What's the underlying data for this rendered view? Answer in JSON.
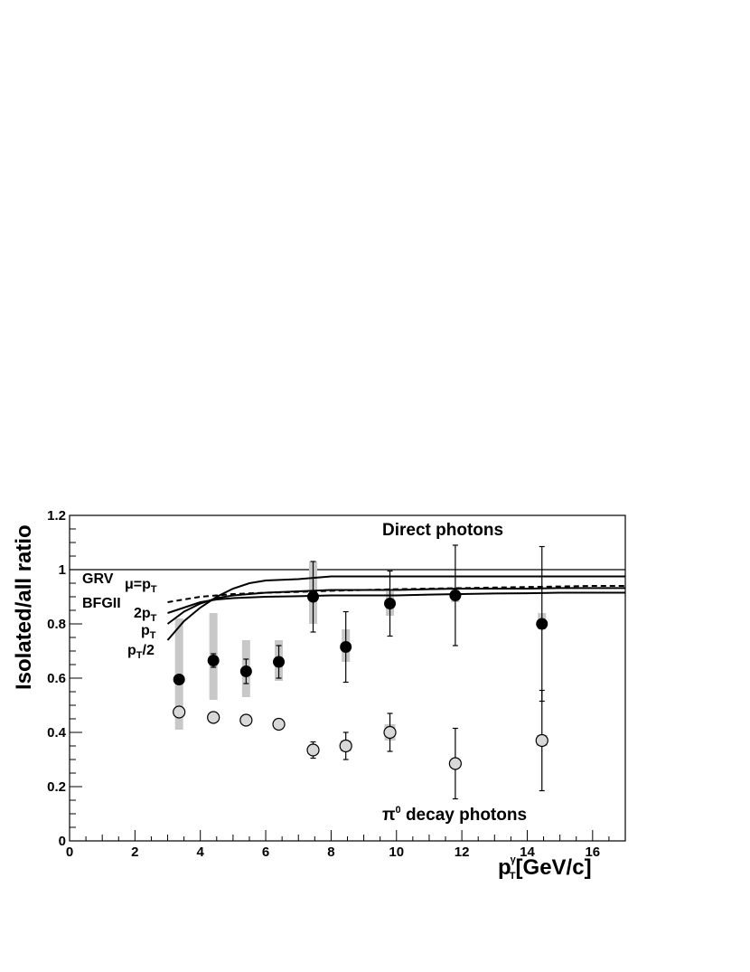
{
  "chart_data": {
    "type": "scatter",
    "ylabel": "Isolated/all ratio",
    "xlabel": {
      "main": "p",
      "sup": "γ",
      "sub": "T",
      "rest": "[GeV/c]"
    },
    "xlim": [
      0,
      17
    ],
    "ylim": [
      0,
      1.2
    ],
    "x_ticks": [
      0,
      2,
      4,
      6,
      8,
      10,
      12,
      14,
      16
    ],
    "y_ticks": [
      0,
      0.2,
      0.4,
      0.6,
      0.8,
      1,
      1.2
    ],
    "x_tick_labels": [
      "0",
      "2",
      "4",
      "6",
      "8",
      "10",
      "12",
      "14",
      "16"
    ],
    "y_tick_labels": [
      "0",
      "0.2",
      "0.4",
      "0.6",
      "0.8",
      "1",
      "1.2"
    ],
    "grid": false,
    "reference_line_y": 1,
    "series": [
      {
        "name": "Direct photons",
        "marker": "filled-circle",
        "points": [
          {
            "x": 3.35,
            "y": 0.595,
            "err_lo": 0.0,
            "err_hi": 0.0,
            "sys_lo": 0.41,
            "sys_hi": 0.82
          },
          {
            "x": 4.4,
            "y": 0.665,
            "err_lo": 0.025,
            "err_hi": 0.025,
            "sys_lo": 0.52,
            "sys_hi": 0.84
          },
          {
            "x": 5.4,
            "y": 0.625,
            "err_lo": 0.045,
            "err_hi": 0.045,
            "sys_lo": 0.53,
            "sys_hi": 0.74
          },
          {
            "x": 6.4,
            "y": 0.66,
            "err_lo": 0.06,
            "err_hi": 0.06,
            "sys_lo": 0.59,
            "sys_hi": 0.74
          },
          {
            "x": 7.45,
            "y": 0.9,
            "err_lo": 0.13,
            "err_hi": 0.13,
            "sys_lo": 0.8,
            "sys_hi": 1.03
          },
          {
            "x": 8.45,
            "y": 0.715,
            "err_lo": 0.13,
            "err_hi": 0.13,
            "sys_lo": 0.66,
            "sys_hi": 0.78
          },
          {
            "x": 9.8,
            "y": 0.875,
            "err_lo": 0.12,
            "err_hi": 0.12,
            "sys_lo": 0.83,
            "sys_hi": 0.92
          },
          {
            "x": 11.8,
            "y": 0.905,
            "err_lo": 0.185,
            "err_hi": 0.185,
            "sys_lo": 0.88,
            "sys_hi": 0.93
          },
          {
            "x": 14.45,
            "y": 0.8,
            "err_lo": 0.285,
            "err_hi": 0.285,
            "sys_lo": 0.78,
            "sys_hi": 0.84
          }
        ]
      },
      {
        "name": "π⁰ decay photons",
        "marker": "open-circle",
        "points": [
          {
            "x": 3.35,
            "y": 0.475,
            "err_lo": 0.0,
            "err_hi": 0.0,
            "sys_lo": 0.46,
            "sys_hi": 0.49
          },
          {
            "x": 4.4,
            "y": 0.455,
            "err_lo": 0.0,
            "err_hi": 0.0,
            "sys_lo": 0.44,
            "sys_hi": 0.47
          },
          {
            "x": 5.4,
            "y": 0.445,
            "err_lo": 0.0,
            "err_hi": 0.0,
            "sys_lo": 0.43,
            "sys_hi": 0.46
          },
          {
            "x": 6.4,
            "y": 0.43,
            "err_lo": 0.0,
            "err_hi": 0.0,
            "sys_lo": 0.42,
            "sys_hi": 0.44
          },
          {
            "x": 7.45,
            "y": 0.335,
            "err_lo": 0.03,
            "err_hi": 0.03,
            "sys_lo": 0.32,
            "sys_hi": 0.35
          },
          {
            "x": 8.45,
            "y": 0.35,
            "err_lo": 0.05,
            "err_hi": 0.05,
            "sys_lo": 0.33,
            "sys_hi": 0.37
          },
          {
            "x": 9.8,
            "y": 0.4,
            "err_lo": 0.07,
            "err_hi": 0.07,
            "sys_lo": 0.37,
            "sys_hi": 0.43
          },
          {
            "x": 11.8,
            "y": 0.285,
            "err_lo": 0.13,
            "err_hi": 0.13,
            "sys_lo": 0.27,
            "sys_hi": 0.3
          },
          {
            "x": 14.45,
            "y": 0.37,
            "err_lo": 0.185,
            "err_hi": 0.185,
            "sys_lo": 0.35,
            "sys_hi": 0.39
          }
        ]
      }
    ],
    "curves": [
      {
        "name": "GRV μ=2pT",
        "style": "solid",
        "points": [
          [
            3.0,
            0.84
          ],
          [
            3.5,
            0.86
          ],
          [
            4,
            0.88
          ],
          [
            4.5,
            0.89
          ],
          [
            5,
            0.895
          ],
          [
            6,
            0.9
          ],
          [
            7,
            0.902
          ],
          [
            8,
            0.905
          ],
          [
            9,
            0.905
          ],
          [
            10,
            0.905
          ],
          [
            11,
            0.908
          ],
          [
            12,
            0.91
          ],
          [
            13,
            0.912
          ],
          [
            14,
            0.913
          ],
          [
            15,
            0.915
          ],
          [
            16,
            0.915
          ],
          [
            17,
            0.915
          ]
        ]
      },
      {
        "name": "GRV μ=pT",
        "style": "solid",
        "points": [
          [
            3.0,
            0.8
          ],
          [
            3.5,
            0.845
          ],
          [
            4,
            0.875
          ],
          [
            4.5,
            0.895
          ],
          [
            5,
            0.905
          ],
          [
            6,
            0.915
          ],
          [
            7,
            0.92
          ],
          [
            8,
            0.925
          ],
          [
            9,
            0.925
          ],
          [
            10,
            0.925
          ],
          [
            11,
            0.928
          ],
          [
            12,
            0.93
          ],
          [
            13,
            0.93
          ],
          [
            14,
            0.93
          ],
          [
            15,
            0.932
          ],
          [
            16,
            0.932
          ],
          [
            17,
            0.932
          ]
        ]
      },
      {
        "name": "GRV μ=pT/2",
        "style": "solid",
        "points": [
          [
            3.0,
            0.74
          ],
          [
            3.5,
            0.81
          ],
          [
            4,
            0.86
          ],
          [
            4.5,
            0.9
          ],
          [
            5,
            0.93
          ],
          [
            5.5,
            0.95
          ],
          [
            6,
            0.96
          ],
          [
            7,
            0.965
          ],
          [
            7.5,
            0.97
          ],
          [
            8,
            0.975
          ],
          [
            9,
            0.975
          ],
          [
            10,
            0.975
          ],
          [
            11,
            0.975
          ],
          [
            12,
            0.975
          ],
          [
            13,
            0.975
          ],
          [
            14,
            0.975
          ],
          [
            15,
            0.975
          ],
          [
            16,
            0.975
          ],
          [
            17,
            0.975
          ]
        ]
      },
      {
        "name": "BFGII",
        "style": "dashed",
        "points": [
          [
            3.0,
            0.88
          ],
          [
            3.5,
            0.89
          ],
          [
            4,
            0.9
          ],
          [
            4.5,
            0.905
          ],
          [
            5,
            0.91
          ],
          [
            6,
            0.915
          ],
          [
            7,
            0.918
          ],
          [
            8,
            0.922
          ],
          [
            9,
            0.925
          ],
          [
            10,
            0.928
          ],
          [
            11,
            0.93
          ],
          [
            12,
            0.932
          ],
          [
            13,
            0.934
          ],
          [
            14,
            0.936
          ],
          [
            15,
            0.938
          ],
          [
            16,
            0.94
          ],
          [
            17,
            0.94
          ]
        ]
      }
    ],
    "annotations": {
      "direct_photons": "Direct photons",
      "pi0_prefix": "π",
      "pi0_sup": "0",
      "pi0_rest": " decay photons",
      "grv": "GRV",
      "mu_label_main": "μ=p",
      "mu_label_sub": "T",
      "bfgii": "BFGII",
      "scale_2pt_main": "2p",
      "scale_pt_main": "p",
      "scale_pt2_main": "p",
      "scale_pt2_rest": "/2",
      "scale_sub": "T"
    },
    "colors": {
      "axis": "#000000",
      "systematic_band": "#c8c8c8",
      "open_marker_fill": "#d8d8d8",
      "filled_marker": "#000000"
    }
  }
}
